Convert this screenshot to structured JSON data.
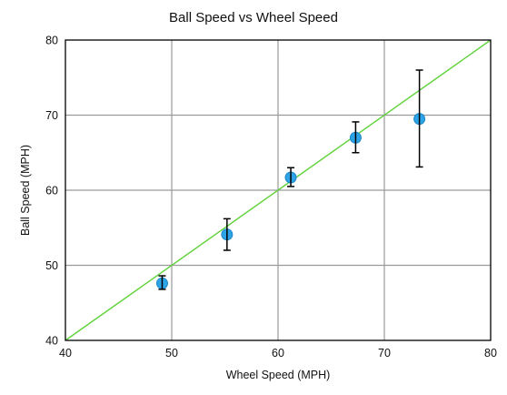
{
  "chart_data": {
    "type": "scatter",
    "title": "Ball Speed vs Wheel Speed",
    "xlabel": "Wheel Speed (MPH)",
    "ylabel": "Ball Speed (MPH)",
    "xlim": [
      40,
      80
    ],
    "ylim": [
      40,
      80
    ],
    "xticks": [
      40,
      50,
      60,
      70,
      80
    ],
    "yticks": [
      40,
      50,
      60,
      70,
      80
    ],
    "grid": true,
    "points": [
      {
        "x": 49.1,
        "y": 47.6,
        "err_low": 46.8,
        "err_high": 48.6
      },
      {
        "x": 55.2,
        "y": 54.1,
        "err_low": 52.0,
        "err_high": 56.2
      },
      {
        "x": 61.2,
        "y": 61.7,
        "err_low": 60.5,
        "err_high": 63.0
      },
      {
        "x": 67.3,
        "y": 67.0,
        "err_low": 65.0,
        "err_high": 69.1
      },
      {
        "x": 73.3,
        "y": 69.5,
        "err_low": 63.1,
        "err_high": 76.0
      }
    ],
    "reference_line": {
      "x": [
        40,
        80
      ],
      "y": [
        40,
        80
      ],
      "color": "#5fd23a"
    },
    "point_color": "#2ea3e6",
    "errorbar_color": "#000000",
    "grid_color": "#9a9a9a"
  }
}
